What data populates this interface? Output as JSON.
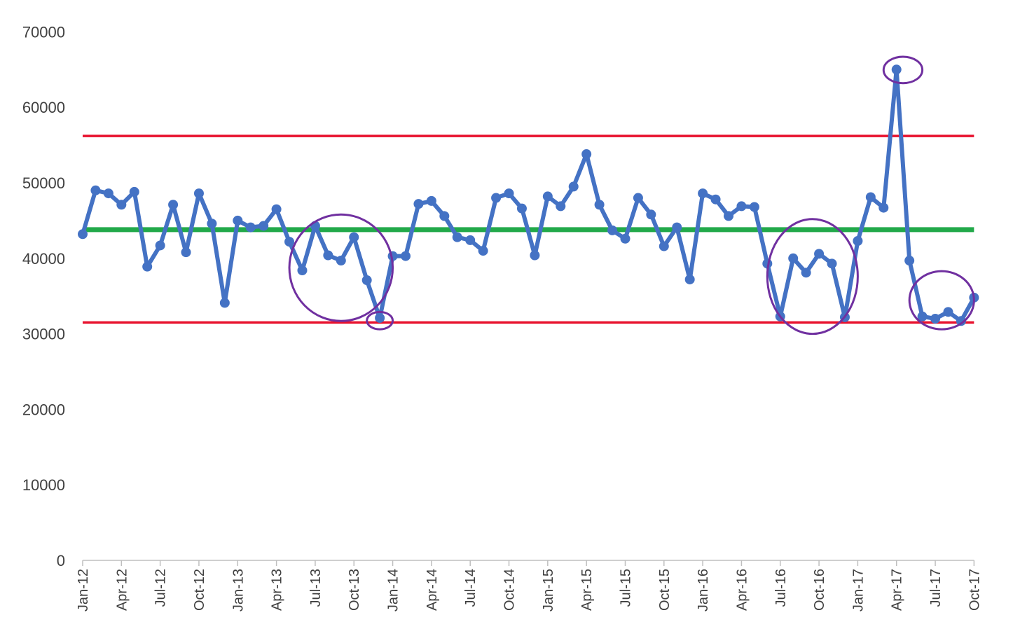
{
  "chart_data": {
    "type": "line",
    "title": "",
    "xlabel": "",
    "ylabel": "",
    "ylim": [
      0,
      70000
    ],
    "yticks": [
      0,
      10000,
      20000,
      30000,
      40000,
      50000,
      60000,
      70000
    ],
    "ytick_labels": [
      "0",
      "10000",
      "20000",
      "30000",
      "40000",
      "50000",
      "60000",
      "70000"
    ],
    "grid": false,
    "legend": "none",
    "x_tick_labels": [
      "Jan-12",
      "Apr-12",
      "Jul-12",
      "Oct-12",
      "Jan-13",
      "Apr-13",
      "Jul-13",
      "Oct-13",
      "Jan-14",
      "Apr-14",
      "Jul-14",
      "Oct-14",
      "Jan-15",
      "Apr-15",
      "Jul-15",
      "Oct-15",
      "Jan-16",
      "Apr-16",
      "Jul-16",
      "Oct-16",
      "Jan-17",
      "Apr-17",
      "Jul-17",
      "Oct-17"
    ],
    "x_tick_every": 3,
    "x": [
      "Jan-12",
      "Feb-12",
      "Mar-12",
      "Apr-12",
      "May-12",
      "Jun-12",
      "Jul-12",
      "Aug-12",
      "Sep-12",
      "Oct-12",
      "Nov-12",
      "Dec-12",
      "Jan-13",
      "Feb-13",
      "Mar-13",
      "Apr-13",
      "May-13",
      "Jun-13",
      "Jul-13",
      "Aug-13",
      "Sep-13",
      "Oct-13",
      "Nov-13",
      "Dec-13",
      "Jan-14",
      "Feb-14",
      "Mar-14",
      "Apr-14",
      "May-14",
      "Jun-14",
      "Jul-14",
      "Aug-14",
      "Sep-14",
      "Oct-14",
      "Nov-14",
      "Dec-14",
      "Jan-15",
      "Feb-15",
      "Mar-15",
      "Apr-15",
      "May-15",
      "Jun-15",
      "Jul-15",
      "Aug-15",
      "Sep-15",
      "Oct-15",
      "Nov-15",
      "Dec-15",
      "Jan-16",
      "Feb-16",
      "Mar-16",
      "Apr-16",
      "May-16",
      "Jun-16",
      "Jul-16",
      "Aug-16",
      "Sep-16",
      "Oct-16",
      "Nov-16",
      "Dec-16",
      "Jan-17",
      "Feb-17",
      "Mar-17",
      "Apr-17",
      "May-17",
      "Jun-17",
      "Jul-17",
      "Aug-17",
      "Sep-17",
      "Oct-17"
    ],
    "series": [
      {
        "color": "#4472c4",
        "values": [
          43200,
          49000,
          48600,
          47100,
          48800,
          38900,
          41700,
          47100,
          40800,
          48600,
          44600,
          34100,
          45000,
          44100,
          44300,
          46500,
          42200,
          38400,
          44300,
          40400,
          39700,
          42800,
          37100,
          32100,
          40300,
          40300,
          47200,
          47600,
          45600,
          42800,
          42400,
          41000,
          48000,
          48600,
          46600,
          40400,
          48200,
          46900,
          49500,
          53800,
          47100,
          43700,
          42600,
          48000,
          45800,
          41600,
          44100,
          37200,
          48600,
          47800,
          45600,
          46900,
          46800,
          39300,
          32300,
          40000,
          38100,
          40600,
          39300,
          32200,
          42300,
          48100,
          46700,
          65000,
          39700,
          32300,
          32000,
          32900,
          31700,
          34800
        ]
      }
    ],
    "reference_lines": [
      {
        "role": "center",
        "value": 43800,
        "color": "#22a94a"
      },
      {
        "role": "upper-limit",
        "value": 56200,
        "color": "#e8112d"
      },
      {
        "role": "lower-limit",
        "value": 31500,
        "color": "#e8112d"
      }
    ],
    "annotations": [
      {
        "shape": "ellipse",
        "color": "#7030a0",
        "around_x": [
          "May-13",
          "Jan-14"
        ],
        "around_y": [
          31700,
          45800
        ]
      },
      {
        "shape": "ellipse",
        "color": "#7030a0",
        "around_x": [
          "Nov-13",
          "Jan-14"
        ],
        "around_y": [
          30600,
          32900
        ]
      },
      {
        "shape": "ellipse",
        "color": "#7030a0",
        "around_x": [
          "Jun-16",
          "Jan-17"
        ],
        "around_y": [
          30000,
          45200
        ]
      },
      {
        "shape": "ellipse",
        "color": "#7030a0",
        "around_x": [
          "Mar-17",
          "Jun-17"
        ],
        "around_y": [
          63200,
          66700
        ]
      },
      {
        "shape": "ellipse",
        "color": "#7030a0",
        "around_x": [
          "May-17",
          "Oct-17"
        ],
        "around_y": [
          30600,
          38300
        ]
      }
    ]
  }
}
